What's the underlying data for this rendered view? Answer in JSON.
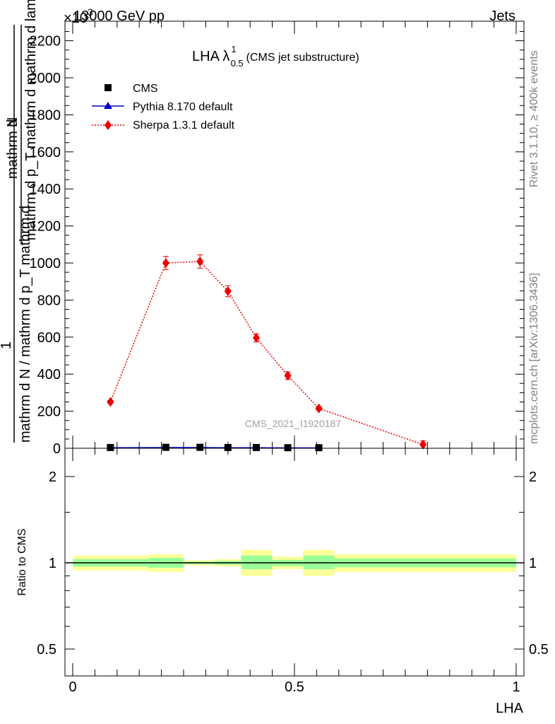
{
  "header": {
    "left": "13000 GeV pp",
    "right": "Jets",
    "multiplier": "×10",
    "multiplier_exp": "3"
  },
  "side_text": {
    "rivet": "Rivet 3.1.10, ≥ 400k events",
    "mcplots": "mcplots.cern.ch [arXiv:1306.3436]"
  },
  "watermark": "CMS_2021_I1920187",
  "chart_data": [
    {
      "type": "line",
      "panel": "main",
      "title": "LHA λ",
      "title_sup": "1",
      "title_sub": "0.5",
      "title_note": "(CMS jet substructure)",
      "ylabel_numerator": "1",
      "ylabel_denominator": "mathrm d N / mathrm d p_T mathrm d",
      "ylabel_denominator_extra": "mathrm d",
      "ylabel_frac_top": "mathrm d",
      "ylabel_frac_top2": "N",
      "ylabel_frac_bottom": "mathrm d p_T mathrm d mathrm d lambda",
      "ylabel_lines": [
        "mathrm d N / mathrm d p_T",
        "mathrm d",
        "mathrm d^2N",
        "mathrm d p_T mathrm d mathrm d lambda",
        "1"
      ],
      "ylim": [
        0,
        2300
      ],
      "yticks": [
        0,
        200,
        400,
        600,
        800,
        1000,
        1200,
        1400,
        1600,
        1800,
        2000,
        2200
      ],
      "ytick_labels": [
        "0",
        "200",
        "400",
        "600",
        "800",
        "1000",
        "1200",
        "1400",
        "1600",
        "1800",
        "2000",
        "2200"
      ],
      "xlim": [
        -0.02,
        1.0
      ],
      "legend_position": "top-left",
      "series": [
        {
          "name": "CMS",
          "color": "#000000",
          "marker": "square",
          "x": [
            0.085,
            0.21,
            0.287,
            0.35,
            0.414,
            0.485,
            0.555
          ],
          "y": [
            4,
            5,
            5,
            4,
            4,
            3,
            3
          ]
        },
        {
          "name": "Pythia 8.170 default",
          "color": "#0000cc",
          "marker": "triangle",
          "x": [
            0.085,
            0.21,
            0.287,
            0.35,
            0.414,
            0.485,
            0.555
          ],
          "y": [
            3,
            4,
            4,
            3,
            3,
            2,
            2
          ]
        },
        {
          "name": "Sherpa 1.3.1 default",
          "color": "#ee0000",
          "marker": "diamond",
          "x": [
            0.085,
            0.21,
            0.287,
            0.35,
            0.414,
            0.485,
            0.555,
            0.79
          ],
          "y": [
            250,
            1000,
            1008,
            848,
            596,
            392,
            215,
            20
          ],
          "err": [
            8,
            36,
            36,
            30,
            22,
            20,
            10,
            20
          ]
        }
      ]
    },
    {
      "type": "area",
      "panel": "ratio",
      "ylabel": "Ratio to CMS",
      "yscale": "log",
      "ylim": [
        0.4,
        2.3
      ],
      "yticks": [
        0.5,
        1,
        2
      ],
      "ytick_labels": [
        "0.5",
        "1",
        "2"
      ],
      "xlim": [
        -0.02,
        1.0
      ],
      "xticks": [
        0,
        0.5,
        1
      ],
      "xtick_labels": [
        "0",
        "0.5",
        "1"
      ],
      "xlabel": "LHA",
      "bin_edges": [
        0.0,
        0.17,
        0.25,
        0.32,
        0.38,
        0.45,
        0.52,
        0.59,
        1.0
      ],
      "band_outer_low": [
        0.94,
        0.93,
        0.98,
        0.97,
        0.9,
        0.95,
        0.9,
        0.93
      ],
      "band_outer_high": [
        1.06,
        1.07,
        1.02,
        1.03,
        1.11,
        1.05,
        1.11,
        1.07
      ],
      "band_inner_low": [
        0.97,
        0.96,
        0.99,
        0.985,
        0.95,
        0.975,
        0.95,
        0.965
      ],
      "band_inner_high": [
        1.03,
        1.04,
        1.01,
        1.015,
        1.06,
        1.025,
        1.06,
        1.035
      ],
      "outer_color": "#ffff99",
      "inner_color": "#99ff99"
    }
  ]
}
